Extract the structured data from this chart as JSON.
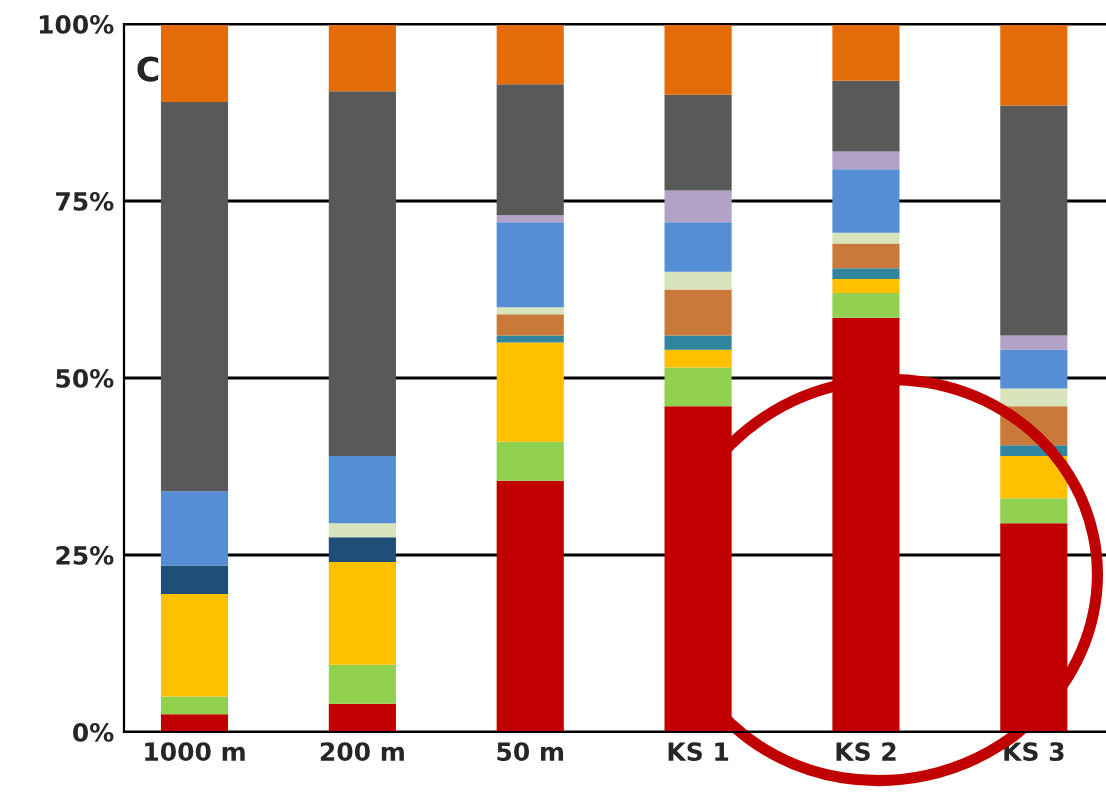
{
  "chart_data": {
    "type": "bar",
    "stacked": true,
    "categories": [
      "1000 m",
      "200 m",
      "50 m",
      "KS 1",
      "KS 2",
      "KS 3"
    ],
    "series": [
      {
        "color": "#c00000",
        "values": [
          2.5,
          4,
          35.5,
          46,
          58.5,
          29.5
        ]
      },
      {
        "color": "#92d050",
        "values": [
          2.5,
          5.5,
          5.5,
          5.5,
          3.5,
          3.5
        ]
      },
      {
        "color": "#ffc000",
        "values": [
          14.5,
          14.5,
          14,
          2.5,
          2,
          6
        ]
      },
      {
        "color": "#1f4e79",
        "values": [
          4,
          3.5,
          0,
          0,
          0,
          0
        ]
      },
      {
        "color": "#31859c",
        "values": [
          0,
          0,
          1,
          2,
          1.5,
          1.5
        ]
      },
      {
        "color": "#c97a3a",
        "values": [
          0,
          0,
          3,
          6.5,
          3.5,
          5.5
        ]
      },
      {
        "color": "#d8e4bc",
        "values": [
          0,
          2,
          1,
          2.5,
          1.5,
          2.5
        ]
      },
      {
        "color": "#558ed5",
        "values": [
          10.5,
          9.5,
          12,
          7,
          9,
          5.5
        ]
      },
      {
        "color": "#b3a2c7",
        "values": [
          0,
          0,
          1,
          4.5,
          2.5,
          2
        ]
      },
      {
        "color": "#595959",
        "values": [
          55,
          51.5,
          18.5,
          13.5,
          10,
          32.5
        ]
      },
      {
        "color": "#e36c09",
        "values": [
          11,
          9.5,
          8.5,
          10,
          8,
          11.5
        ]
      }
    ],
    "ylim": [
      0,
      100
    ],
    "yticks": [
      {
        "value": 0,
        "label": "0%"
      },
      {
        "value": 25,
        "label": "25%"
      },
      {
        "value": 50,
        "label": "50%"
      },
      {
        "value": 75,
        "label": "75%"
      },
      {
        "value": 100,
        "label": "100%"
      }
    ],
    "grid": "y",
    "annotations": [
      "C"
    ]
  }
}
